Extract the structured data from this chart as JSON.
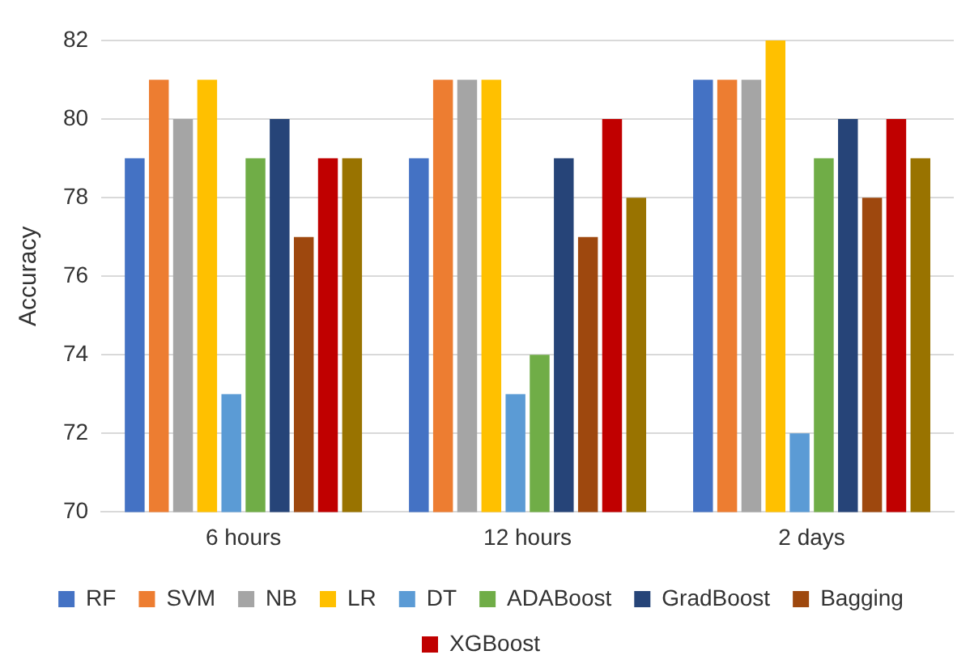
{
  "chart_data": {
    "type": "bar",
    "ylabel": "Accuracy",
    "categories": [
      "6 hours",
      "12 hours",
      "2 days"
    ],
    "series": [
      {
        "name": "RF",
        "color": "#4472c4",
        "values": [
          79,
          79,
          81
        ]
      },
      {
        "name": "SVM",
        "color": "#ed7d31",
        "values": [
          81,
          81,
          81
        ]
      },
      {
        "name": "NB",
        "color": "#a5a5a5",
        "values": [
          80,
          81,
          81
        ]
      },
      {
        "name": "LR",
        "color": "#ffc000",
        "values": [
          81,
          81,
          82
        ]
      },
      {
        "name": "DT",
        "color": "#5b9bd5",
        "values": [
          73,
          73,
          72
        ]
      },
      {
        "name": "ADABoost",
        "color": "#70ad47",
        "values": [
          79,
          74,
          79
        ]
      },
      {
        "name": "GradBoost",
        "color": "#264478",
        "values": [
          80,
          79,
          80
        ]
      },
      {
        "name": "Bagging",
        "color": "#9e480e",
        "values": [
          77,
          77,
          78
        ]
      },
      {
        "name": "XGBoost",
        "color": "#c00000",
        "values": [
          79,
          80,
          80
        ]
      },
      {
        "color": "#997300",
        "values": [
          79,
          78,
          79
        ]
      }
    ],
    "ylim": [
      70,
      82
    ],
    "yticks": [
      70,
      72,
      74,
      76,
      78,
      80,
      82
    ],
    "grid": "y",
    "legend": "bottom"
  }
}
